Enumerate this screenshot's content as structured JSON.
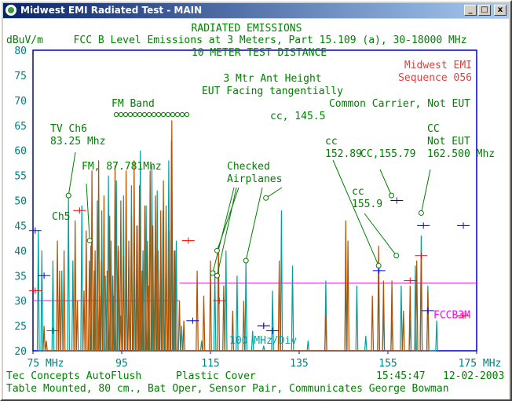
{
  "window": {
    "title": "Midwest EMI Radiated Test - MAIN",
    "minimize_glyph": "_",
    "maximize_glyph": "□",
    "close_glyph": "x"
  },
  "header": {
    "line1": "RADIATED EMISSIONS",
    "line2": "FCC B Level Emissions at 3 Meters, Part 15.109 (a), 30-18000 MHz",
    "line3": "10 METER TEST DISTANCE",
    "unit": "dBuV/m",
    "company": "Midwest EMI",
    "sequence": "Sequence 056"
  },
  "chart_data": {
    "type": "line",
    "ylabel": "dBuV/m",
    "x_unit": "MHz",
    "xlim": [
      75,
      175
    ],
    "ylim": [
      20,
      80
    ],
    "x_ticks": [
      "75 MHz",
      "95",
      "115",
      "135",
      "155",
      "175 MHz"
    ],
    "y_ticks": [
      "80",
      "75",
      "70",
      "65",
      "60",
      "55",
      "50",
      "45",
      "40",
      "35",
      "30",
      "25",
      "20"
    ],
    "limit_line": {
      "name": "FCCB3M",
      "segments": [
        {
          "x": [
            75,
            108
          ],
          "y": [
            30,
            30
          ]
        },
        {
          "x": [
            108,
            175
          ],
          "y": [
            33.5,
            33.5
          ]
        }
      ],
      "color": "#ff00ff"
    },
    "colors": {
      "horizontal": "#00a0a0",
      "vertical": "#b05000",
      "markers_left": "#ff0000",
      "markers_right": "#0000ff",
      "annotation": "#008000",
      "axis_text": "#008080"
    },
    "horizontal_peaks": [
      [
        76.2,
        44
      ],
      [
        77.0,
        40
      ],
      [
        79.5,
        38
      ],
      [
        81.5,
        36
      ],
      [
        83.0,
        51
      ],
      [
        84.0,
        38
      ],
      [
        86.0,
        49
      ],
      [
        88.0,
        41
      ],
      [
        88.8,
        36
      ],
      [
        89.5,
        50
      ],
      [
        90.0,
        31
      ],
      [
        90.5,
        48
      ],
      [
        91.3,
        35
      ],
      [
        92.0,
        55
      ],
      [
        92.6,
        42
      ],
      [
        93.2,
        31
      ],
      [
        93.8,
        54
      ],
      [
        94.3,
        40
      ],
      [
        94.8,
        27
      ],
      [
        95.4,
        51
      ],
      [
        96.0,
        38
      ],
      [
        96.6,
        30
      ],
      [
        97.2,
        53
      ],
      [
        97.9,
        36
      ],
      [
        98.5,
        45
      ],
      [
        99.2,
        60
      ],
      [
        99.8,
        40
      ],
      [
        100.5,
        49
      ],
      [
        101.1,
        33
      ],
      [
        101.8,
        57
      ],
      [
        102.5,
        39
      ],
      [
        103.0,
        52
      ],
      [
        103.7,
        36
      ],
      [
        104.3,
        48
      ],
      [
        105.0,
        44
      ],
      [
        105.6,
        58
      ],
      [
        106.2,
        62
      ],
      [
        106.8,
        40
      ],
      [
        107.3,
        42
      ],
      [
        108.5,
        25
      ],
      [
        113.0,
        22
      ],
      [
        116.0,
        36
      ],
      [
        118.5,
        40
      ],
      [
        121.0,
        35
      ],
      [
        123.0,
        38
      ],
      [
        124.5,
        24
      ],
      [
        127.0,
        21
      ],
      [
        129.0,
        32
      ],
      [
        131.0,
        48
      ],
      [
        133.5,
        37
      ],
      [
        137.0,
        22
      ],
      [
        141.0,
        34
      ],
      [
        145.5,
        36
      ],
      [
        148.0,
        33
      ],
      [
        150.0,
        23
      ],
      [
        152.9,
        36
      ],
      [
        154.0,
        28
      ],
      [
        155.9,
        26
      ],
      [
        158.0,
        33
      ],
      [
        160.0,
        26
      ],
      [
        161.2,
        37
      ],
      [
        162.5,
        43
      ],
      [
        164.0,
        33
      ],
      [
        166.0,
        26
      ]
    ],
    "vertical_peaks": [
      [
        77.5,
        25
      ],
      [
        78.0,
        22
      ],
      [
        80.5,
        42
      ],
      [
        81.0,
        36
      ],
      [
        82.0,
        40
      ],
      [
        84.5,
        46
      ],
      [
        85.0,
        30
      ],
      [
        86.5,
        32
      ],
      [
        87.0,
        44
      ],
      [
        87.7,
        38
      ],
      [
        88.3,
        56
      ],
      [
        89.0,
        40
      ],
      [
        89.8,
        58
      ],
      [
        90.4,
        38
      ],
      [
        91.0,
        51
      ],
      [
        91.7,
        36
      ],
      [
        92.3,
        47
      ],
      [
        93.0,
        35
      ],
      [
        93.5,
        57
      ],
      [
        94.2,
        41
      ],
      [
        94.8,
        50
      ],
      [
        95.4,
        39
      ],
      [
        96.0,
        56
      ],
      [
        96.6,
        42
      ],
      [
        97.2,
        47
      ],
      [
        97.8,
        58
      ],
      [
        98.4,
        45
      ],
      [
        99.0,
        53
      ],
      [
        99.6,
        36
      ],
      [
        100.2,
        49
      ],
      [
        100.8,
        42
      ],
      [
        101.4,
        56
      ],
      [
        102.0,
        45
      ],
      [
        102.6,
        51
      ],
      [
        103.2,
        40
      ],
      [
        103.8,
        48
      ],
      [
        104.4,
        54
      ],
      [
        105.0,
        49
      ],
      [
        105.7,
        44
      ],
      [
        106.3,
        66
      ],
      [
        107.0,
        40
      ],
      [
        108.0,
        30
      ],
      [
        109.0,
        26
      ],
      [
        112.0,
        36
      ],
      [
        113.5,
        31
      ],
      [
        115.0,
        38
      ],
      [
        116.8,
        41
      ],
      [
        118.0,
        33
      ],
      [
        120.0,
        28
      ],
      [
        122.5,
        30
      ],
      [
        130.5,
        38
      ],
      [
        141.0,
        27
      ],
      [
        145.5,
        46
      ],
      [
        146.0,
        42
      ],
      [
        151.5,
        31
      ],
      [
        152.9,
        41
      ],
      [
        154.0,
        34
      ],
      [
        155.9,
        34
      ],
      [
        158.5,
        28
      ],
      [
        160.0,
        33
      ],
      [
        161.5,
        38
      ],
      [
        162.5,
        39
      ],
      [
        164.0,
        32
      ]
    ],
    "markers_left_pts": [
      [
        75.5,
        32
      ],
      [
        85.5,
        48
      ],
      [
        79.5,
        24
      ],
      [
        110.0,
        42
      ],
      [
        117.0,
        30
      ],
      [
        127.0,
        25
      ],
      [
        160.0,
        34
      ],
      [
        162.5,
        39
      ],
      [
        172.0,
        27
      ]
    ],
    "markers_right_pts": [
      [
        75.5,
        44
      ],
      [
        77.5,
        35
      ],
      [
        111.0,
        26
      ],
      [
        127.0,
        25
      ],
      [
        129.0,
        24
      ],
      [
        153.0,
        36
      ],
      [
        157.0,
        50
      ],
      [
        163.0,
        45
      ],
      [
        164.0,
        28
      ],
      [
        172.0,
        45
      ]
    ],
    "annotations": [
      {
        "lines": [
          "3 Mtr Ant Height",
          "EUT Facing tangentially"
        ]
      },
      {
        "lines": [
          "Common Carrier, Not EUT"
        ]
      },
      {
        "lines": [
          "FM Band"
        ]
      },
      {
        "lines": [
          "cc, 145.5"
        ]
      },
      {
        "lines": [
          "TV Ch6",
          "83.25 Mhz"
        ],
        "target": [
          83.0,
          51
        ]
      },
      {
        "lines": [
          "FM, 87.781Mhz"
        ],
        "target": [
          87.781,
          42
        ]
      },
      {
        "lines": [
          "Checked",
          "Airplanes"
        ],
        "targets": [
          [
            115.5,
            35.5
          ],
          [
            116.5,
            40
          ],
          [
            116.5,
            35
          ],
          [
            123.0,
            38
          ],
          [
            127.5,
            50.5
          ]
        ]
      },
      {
        "lines": [
          "cc",
          "152.89"
        ],
        "target": [
          152.9,
          37
        ]
      },
      {
        "lines": [
          "CC,155.79"
        ],
        "target": [
          155.8,
          51
        ]
      },
      {
        "lines": [
          "cc",
          "155.9"
        ],
        "target": [
          156.9,
          39
        ]
      },
      {
        "lines": [
          "CC",
          "Not EUT",
          "162.500 Mhz"
        ],
        "target": [
          162.5,
          47.5
        ]
      },
      {
        "lines": [
          "Ch5"
        ]
      }
    ],
    "fm_band_circles": 16,
    "tag": "100 MHz/Div"
  },
  "footer": {
    "left1": "Tec Concepts AutoFlush",
    "mid1": "Plastic Cover",
    "time": "15:45:47",
    "date": "12-02-2003",
    "line2": "Table Mounted, 80 cm., Bat Oper, Sensor Pair, Communicates George Bowman"
  }
}
